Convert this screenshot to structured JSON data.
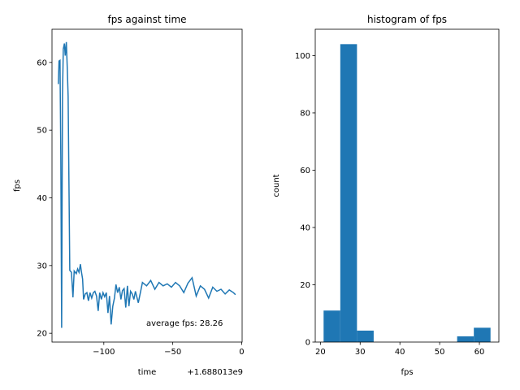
{
  "chart_data": [
    {
      "type": "line",
      "title": "fps against time",
      "x_label": "time",
      "y_label": "fps",
      "x_offset_label": "+1.688013e9",
      "annotation": "average fps: 28.26",
      "color": "#1f77b4",
      "x": [
        -133,
        -132.5,
        -131.8,
        -131.2,
        -130.6,
        -130,
        -129.4,
        -128.6,
        -128,
        -127.2,
        -126.5,
        -125.9,
        -124.7,
        -123.5,
        -122.4,
        -121.5,
        -120,
        -119,
        -118,
        -117,
        -116.2,
        -115.4,
        -114.7,
        -113.5,
        -112.3,
        -111.2,
        -110,
        -108.8,
        -107.6,
        -106.5,
        -105.3,
        -104.1,
        -103,
        -101.8,
        -100.6,
        -99.4,
        -98.2,
        -97,
        -95.9,
        -94.7,
        -93.5,
        -92.3,
        -91.2,
        -90,
        -88.8,
        -87.6,
        -86.5,
        -85.3,
        -84.1,
        -82.9,
        -81.8,
        -80.6,
        -79.4,
        -78.2,
        -77.1,
        -75,
        -72,
        -69,
        -66,
        -63,
        -60,
        -57,
        -54,
        -51,
        -48,
        -45,
        -42,
        -39,
        -36,
        -33,
        -30,
        -27,
        -24,
        -21,
        -18,
        -15,
        -12,
        -9,
        -6,
        -4.5
      ],
      "values": [
        56.8,
        60.2,
        60.3,
        46,
        20.8,
        55,
        62,
        62.8,
        61,
        63,
        59,
        55,
        29.3,
        29,
        25.3,
        29.2,
        28.8,
        29.5,
        29,
        30.2,
        29,
        28,
        25,
        25.8,
        26,
        24.8,
        26,
        25.2,
        26,
        26.2,
        25.5,
        23.3,
        26,
        25,
        26,
        25.4,
        26,
        23,
        25.5,
        21.3,
        24,
        25.2,
        27.2,
        26,
        26.8,
        25,
        26.3,
        26.6,
        23.8,
        27,
        24,
        26.2,
        25.8,
        25,
        26.2,
        24.5,
        27.5,
        27,
        27.8,
        26.5,
        27.5,
        27,
        27.3,
        26.8,
        27.5,
        27,
        26,
        27.4,
        28.2,
        25.5,
        27,
        26.5,
        25.2,
        26.8,
        26.2,
        26.5,
        25.8,
        26.4,
        26,
        25.7
      ],
      "xlim": [
        -137.6,
        0.3
      ],
      "ylim": [
        18.7,
        64.9
      ],
      "xticks": [
        {
          "value": -100,
          "label": "−100"
        },
        {
          "value": -50,
          "label": "−50"
        },
        0
      ],
      "yticks": [
        20,
        30,
        40,
        50,
        60
      ]
    },
    {
      "type": "histogram",
      "title": "histogram of fps",
      "x_label": "fps",
      "y_label": "count",
      "color": "#1f77b4",
      "bins": [
        20.8,
        25.0,
        29.2,
        33.4,
        37.6,
        41.8,
        46.0,
        50.2,
        54.4,
        58.6,
        62.8
      ],
      "values": [
        11,
        104,
        4,
        0,
        0,
        0,
        0,
        0,
        2,
        5
      ],
      "xlim": [
        18.7,
        64.9
      ],
      "ylim": [
        0,
        109.2
      ],
      "xticks": [
        20,
        30,
        40,
        50,
        60
      ],
      "yticks": [
        0,
        20,
        40,
        60,
        80,
        100
      ]
    }
  ]
}
